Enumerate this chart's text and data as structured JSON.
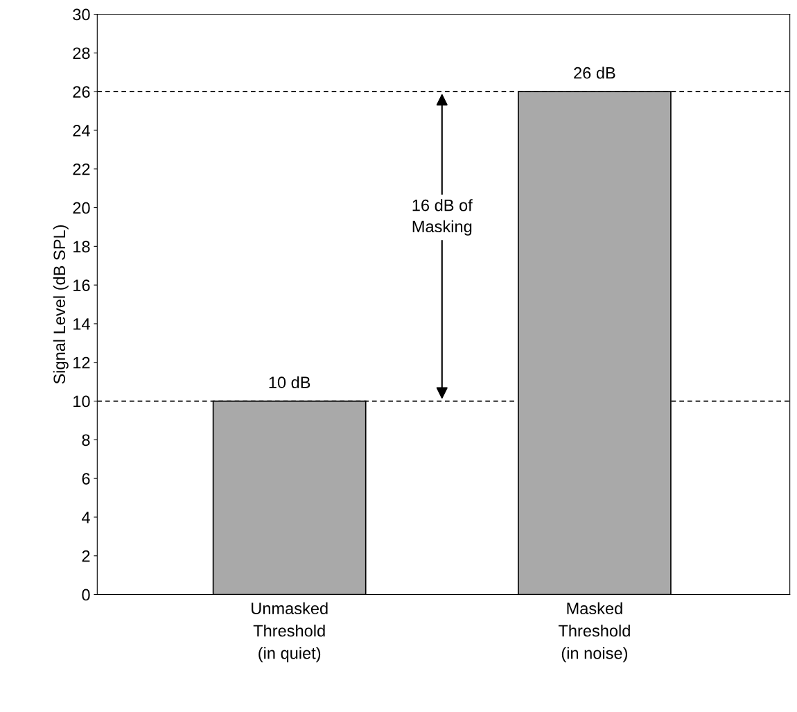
{
  "chart_data": {
    "type": "bar",
    "categories": [
      "Unmasked\nThreshold\n(in quiet)",
      "Masked\nThreshold\n(in noise)"
    ],
    "values": [
      10,
      26
    ],
    "value_labels": [
      "10 dB",
      "26 dB"
    ],
    "color": "#a9a9a9",
    "ylabel": "Signal Level (dB SPL)",
    "ylim": [
      0,
      30
    ],
    "yticks": [
      0,
      2,
      4,
      6,
      8,
      10,
      12,
      14,
      16,
      18,
      20,
      22,
      24,
      26,
      28,
      30
    ],
    "ref_lines": [
      {
        "axis": "y",
        "value": 10,
        "color": "#000000",
        "line_style": "dashed"
      },
      {
        "axis": "y",
        "value": 26,
        "color": "#000000",
        "line_style": "dashed"
      }
    ],
    "annotations": [
      "16 dB of\nMasking"
    ],
    "grid": false,
    "legend": false
  }
}
